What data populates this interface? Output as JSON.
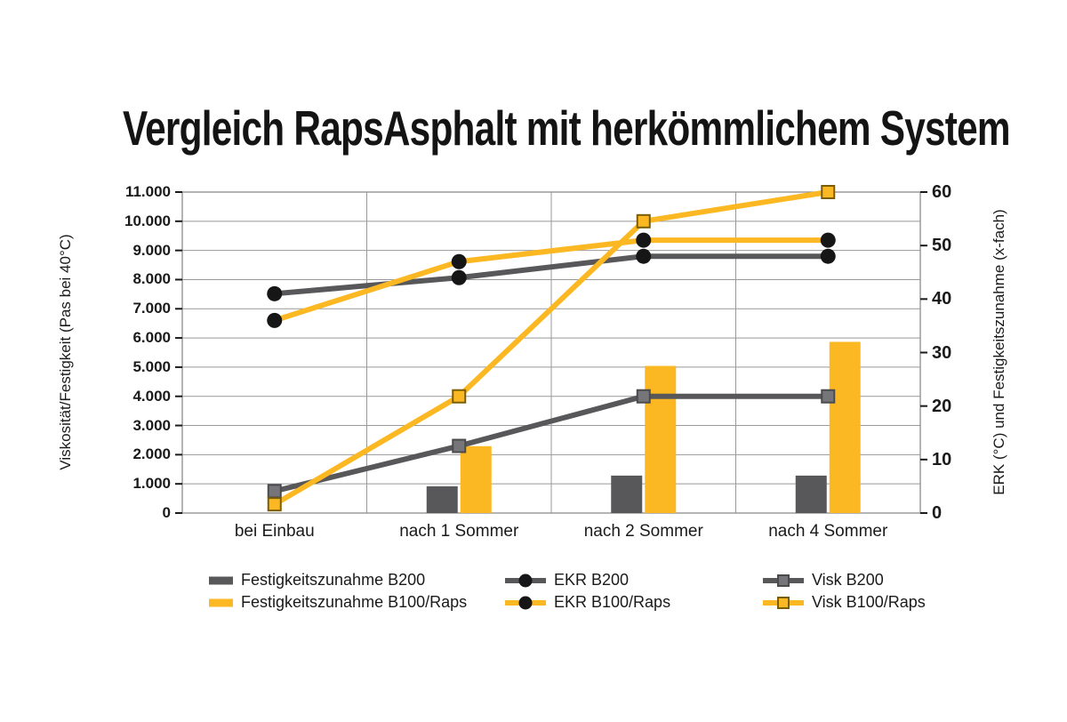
{
  "title": "Vergleich RapsAsphalt mit herkömmlichem System",
  "colors": {
    "yellow": "#FBB823",
    "dark_gray": "#58585A",
    "grid_line": "#999999",
    "plot_border": "#8C8C8C",
    "tick": "#1A1A1A",
    "text": "#1A1A1A",
    "marker_black": "#161616",
    "gray_square_fill": "#76767A",
    "gray_square_stroke": "#4B4B4D",
    "yellow_square_stroke": "#7A5E07"
  },
  "chart_data": {
    "type": "combo",
    "categories": [
      "bei Einbau",
      "nach 1 Sommer",
      "nach 2 Sommer",
      "nach 4 Sommer"
    ],
    "left_axis": {
      "title": "Viskosität/Festigkeit (Pas bei 40°C)",
      "min": 0,
      "max": 11000,
      "tick_step": 1000,
      "tick_labels": [
        "0",
        "1.000",
        "2.000",
        "3.000",
        "4.000",
        "5.000",
        "6.000",
        "7.000",
        "8.000",
        "9.000",
        "10.000",
        "11.000"
      ]
    },
    "right_axis": {
      "title": "ERK (°C) und Festigkeitszunahme (x-fach)",
      "min": 0,
      "max": 60,
      "tick_step": 10,
      "tick_labels": [
        "0",
        "10",
        "20",
        "30",
        "40",
        "50",
        "60"
      ]
    },
    "grid": {
      "horizontal": true,
      "vertical_category_dividers": true
    },
    "series": [
      {
        "name": "Festigkeitszunahme B200",
        "type": "bar",
        "axis": "right",
        "color": "#58585A",
        "values": [
          0,
          5,
          7,
          7
        ]
      },
      {
        "name": "Festigkeitszunahme B100/Raps",
        "type": "bar",
        "axis": "right",
        "color": "#FBB823",
        "values": [
          0,
          12.5,
          27.5,
          32
        ]
      },
      {
        "name": "EKR B200",
        "type": "line",
        "axis": "right",
        "color": "#58585A",
        "marker": "black-circle",
        "values": [
          41,
          44,
          48,
          48
        ]
      },
      {
        "name": "EKR B100/Raps",
        "type": "line",
        "axis": "right",
        "color": "#FBB823",
        "marker": "black-circle",
        "values": [
          36,
          47,
          51,
          51
        ]
      },
      {
        "name": "Visk B200",
        "type": "line",
        "axis": "left",
        "color": "#58585A",
        "marker": "gray-square",
        "values": [
          750,
          2300,
          4000,
          4000
        ]
      },
      {
        "name": "Visk B100/Raps",
        "type": "line",
        "axis": "left",
        "color": "#FBB823",
        "marker": "yellow-square",
        "values": [
          300,
          4000,
          10000,
          11000
        ]
      }
    ],
    "legend": {
      "position": "bottom",
      "columns": [
        [
          0,
          1
        ],
        [
          2,
          3
        ],
        [
          4,
          5
        ]
      ]
    }
  }
}
